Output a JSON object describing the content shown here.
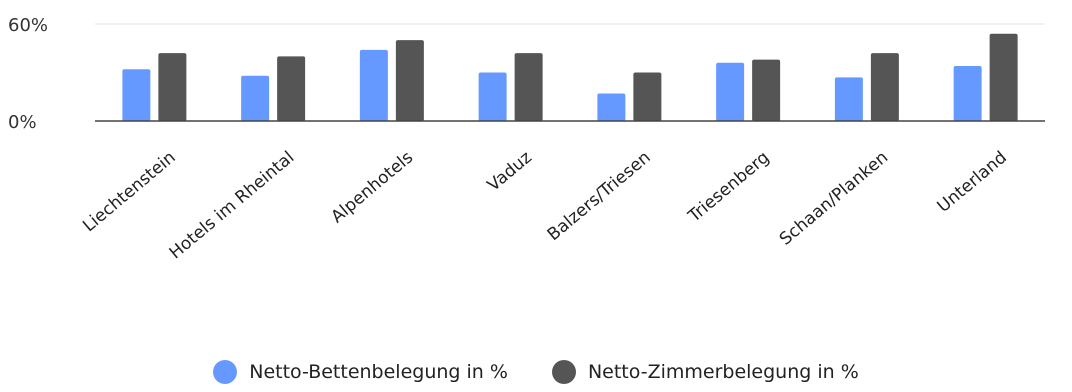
{
  "chart_data": {
    "type": "bar",
    "categories": [
      "Liechtenstein",
      "Hotels im Rheintal",
      "Alpenhotels",
      "Vaduz",
      "Balzers/Triesen",
      "Triesenberg",
      "Schaan/Planken",
      "Unterland"
    ],
    "series": [
      {
        "name": "Netto-Bettenbelegung in %",
        "color": "#6699ff",
        "values": [
          32,
          28,
          44,
          30,
          17,
          36,
          27,
          34
        ]
      },
      {
        "name": "Netto-Zimmerbelegung in %",
        "color": "#555555",
        "values": [
          42,
          40,
          50,
          42,
          30,
          38,
          42,
          54
        ]
      }
    ],
    "ylim": [
      0,
      60
    ],
    "yticks": [
      "0%",
      "60%"
    ],
    "ytick_values": [
      0,
      60
    ],
    "grid": true,
    "legend_position": "bottom"
  }
}
